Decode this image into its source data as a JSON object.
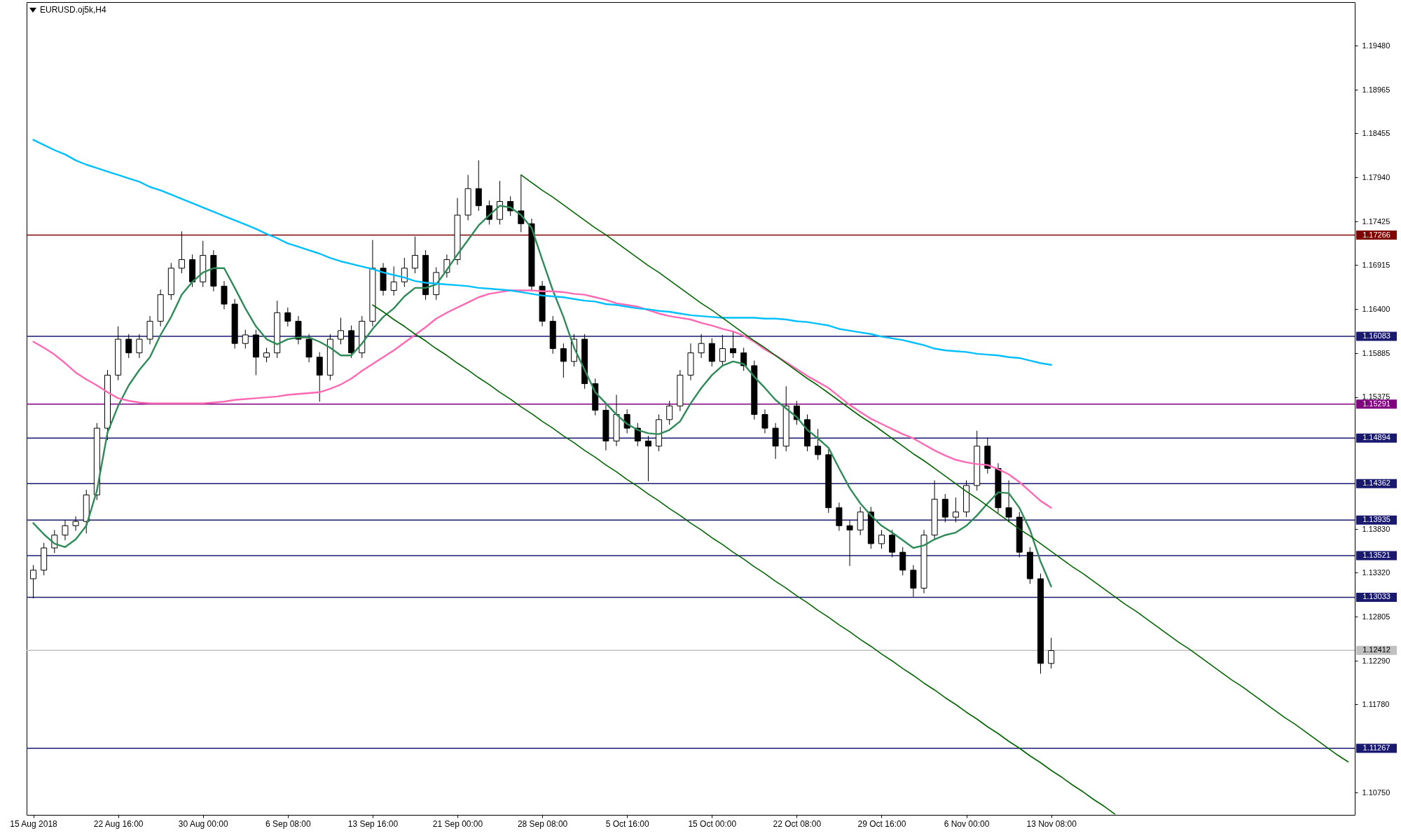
{
  "chart_data": {
    "type": "candlestick",
    "title": "EURUSD.oj5k,H4",
    "categories": [
      "15 Aug 2018",
      null,
      null,
      null,
      null,
      null,
      null,
      null,
      "22 Aug 16:00",
      null,
      null,
      null,
      null,
      null,
      null,
      null,
      "30 Aug 00:00",
      null,
      null,
      null,
      null,
      null,
      null,
      null,
      "6 Sep 08:00",
      null,
      null,
      null,
      null,
      null,
      null,
      null,
      "13 Sep 16:00",
      null,
      null,
      null,
      null,
      null,
      null,
      null,
      "21 Sep 00:00",
      null,
      null,
      null,
      null,
      null,
      null,
      null,
      "28 Sep 08:00",
      null,
      null,
      null,
      null,
      null,
      null,
      null,
      "5 Oct 16:00",
      null,
      null,
      null,
      null,
      null,
      null,
      null,
      "15 Oct 00:00",
      null,
      null,
      null,
      null,
      null,
      null,
      null,
      "22 Oct 08:00",
      null,
      null,
      null,
      null,
      null,
      null,
      null,
      "29 Oct 16:00",
      null,
      null,
      null,
      null,
      null,
      null,
      null,
      "6 Nov 00:00",
      null,
      null,
      null,
      null,
      null,
      null,
      null,
      "13 Nov 08:00",
      null,
      null,
      null,
      null,
      null,
      null,
      null,
      null,
      null,
      null,
      null,
      null,
      null,
      null,
      null,
      null,
      null,
      null,
      null,
      null,
      null,
      null,
      null,
      null,
      null,
      null,
      null,
      null
    ],
    "ohlc": [
      [
        1.1325,
        1.1341,
        1.1302,
        1.1335
      ],
      [
        1.1335,
        1.1367,
        1.1329,
        1.1361
      ],
      [
        1.1361,
        1.1382,
        1.1355,
        1.1376
      ],
      [
        1.1376,
        1.1393,
        1.137,
        1.1387
      ],
      [
        1.1387,
        1.1398,
        1.1381,
        1.1392
      ],
      [
        1.1392,
        1.1429,
        1.1378,
        1.1423
      ],
      [
        1.1423,
        1.1507,
        1.1417,
        1.1501
      ],
      [
        1.1501,
        1.1569,
        1.1487,
        1.1563
      ],
      [
        1.1563,
        1.162,
        1.1557,
        1.1605
      ],
      [
        1.1605,
        1.1611,
        1.1583,
        1.1589
      ],
      [
        1.1589,
        1.1611,
        1.1583,
        1.1605
      ],
      [
        1.1605,
        1.1632,
        1.1599,
        1.1626
      ],
      [
        1.1626,
        1.1663,
        1.162,
        1.1657
      ],
      [
        1.1657,
        1.1694,
        1.1651,
        1.1688
      ],
      [
        1.1688,
        1.1731,
        1.1682,
        1.1698
      ],
      [
        1.1698,
        1.1704,
        1.1666,
        1.1672
      ],
      [
        1.1672,
        1.172,
        1.1666,
        1.1703
      ],
      [
        1.1703,
        1.1709,
        1.1661,
        1.1667
      ],
      [
        1.1667,
        1.1673,
        1.164,
        1.1646
      ],
      [
        1.1646,
        1.1652,
        1.1594,
        1.16
      ],
      [
        1.16,
        1.1616,
        1.1594,
        1.161
      ],
      [
        1.161,
        1.1616,
        1.1563,
        1.1584
      ],
      [
        1.1584,
        1.1595,
        1.1578,
        1.1589
      ],
      [
        1.1589,
        1.165,
        1.1583,
        1.1636
      ],
      [
        1.1636,
        1.1642,
        1.162,
        1.1626
      ],
      [
        1.1626,
        1.1632,
        1.1599,
        1.1605
      ],
      [
        1.1605,
        1.1611,
        1.1578,
        1.1584
      ],
      [
        1.1584,
        1.159,
        1.1532,
        1.1563
      ],
      [
        1.1563,
        1.1611,
        1.1557,
        1.1605
      ],
      [
        1.1605,
        1.163,
        1.1599,
        1.1615
      ],
      [
        1.1615,
        1.1621,
        1.1583,
        1.1589
      ],
      [
        1.1589,
        1.1632,
        1.1583,
        1.1626
      ],
      [
        1.1626,
        1.1721,
        1.162,
        1.1688
      ],
      [
        1.1688,
        1.1694,
        1.1656,
        1.1662
      ],
      [
        1.1662,
        1.169,
        1.1656,
        1.1672
      ],
      [
        1.1672,
        1.17,
        1.1666,
        1.1688
      ],
      [
        1.1688,
        1.1725,
        1.1682,
        1.1703
      ],
      [
        1.1703,
        1.1709,
        1.1651,
        1.1657
      ],
      [
        1.1657,
        1.1689,
        1.1651,
        1.1683
      ],
      [
        1.1683,
        1.1704,
        1.1677,
        1.1698
      ],
      [
        1.1698,
        1.177,
        1.1692,
        1.175
      ],
      [
        1.175,
        1.1797,
        1.1744,
        1.1781
      ],
      [
        1.1781,
        1.1814,
        1.1755,
        1.1761
      ],
      [
        1.1761,
        1.1767,
        1.1739,
        1.1745
      ],
      [
        1.1745,
        1.179,
        1.1739,
        1.1766
      ],
      [
        1.1766,
        1.1772,
        1.1749,
        1.1755
      ],
      [
        1.1755,
        1.1797,
        1.173,
        1.174
      ],
      [
        1.174,
        1.1746,
        1.1661,
        1.1667
      ],
      [
        1.1667,
        1.1673,
        1.162,
        1.1626
      ],
      [
        1.1626,
        1.1632,
        1.1588,
        1.1594
      ],
      [
        1.1594,
        1.16,
        1.156,
        1.1579
      ],
      [
        1.1579,
        1.1611,
        1.1573,
        1.1605
      ],
      [
        1.1605,
        1.1611,
        1.1547,
        1.1553
      ],
      [
        1.1553,
        1.1559,
        1.1516,
        1.1522
      ],
      [
        1.1522,
        1.1528,
        1.1475,
        1.1486
      ],
      [
        1.1486,
        1.154,
        1.148,
        1.1517
      ],
      [
        1.1517,
        1.1523,
        1.1495,
        1.1501
      ],
      [
        1.1501,
        1.1507,
        1.148,
        1.1486
      ],
      [
        1.1486,
        1.1492,
        1.1439,
        1.148
      ],
      [
        1.148,
        1.1517,
        1.1474,
        1.1511
      ],
      [
        1.1511,
        1.1533,
        1.1505,
        1.1527
      ],
      [
        1.1527,
        1.1569,
        1.1521,
        1.1563
      ],
      [
        1.1563,
        1.16,
        1.1557,
        1.1589
      ],
      [
        1.1589,
        1.1611,
        1.1583,
        1.16
      ],
      [
        1.16,
        1.1606,
        1.1573,
        1.1579
      ],
      [
        1.1579,
        1.161,
        1.1573,
        1.1594
      ],
      [
        1.1594,
        1.1615,
        1.1583,
        1.1589
      ],
      [
        1.1589,
        1.1595,
        1.1568,
        1.1574
      ],
      [
        1.1574,
        1.158,
        1.1511,
        1.1517
      ],
      [
        1.1517,
        1.1523,
        1.1495,
        1.1501
      ],
      [
        1.1501,
        1.1507,
        1.1465,
        1.148
      ],
      [
        1.148,
        1.155,
        1.1474,
        1.1527
      ],
      [
        1.1527,
        1.1533,
        1.1505,
        1.1511
      ],
      [
        1.1511,
        1.1517,
        1.1474,
        1.148
      ],
      [
        1.148,
        1.15,
        1.1464,
        1.147
      ],
      [
        1.147,
        1.1476,
        1.1402,
        1.1408
      ],
      [
        1.1408,
        1.1414,
        1.1381,
        1.1387
      ],
      [
        1.1387,
        1.1393,
        1.134,
        1.1382
      ],
      [
        1.1382,
        1.1409,
        1.1376,
        1.1403
      ],
      [
        1.1403,
        1.1409,
        1.136,
        1.1366
      ],
      [
        1.1366,
        1.1382,
        1.136,
        1.1376
      ],
      [
        1.1376,
        1.1382,
        1.135,
        1.1356
      ],
      [
        1.1356,
        1.1362,
        1.1329,
        1.1335
      ],
      [
        1.1335,
        1.1341,
        1.1304,
        1.1314
      ],
      [
        1.1314,
        1.1382,
        1.1308,
        1.1376
      ],
      [
        1.1376,
        1.144,
        1.137,
        1.1418
      ],
      [
        1.1418,
        1.1424,
        1.1391,
        1.1397
      ],
      [
        1.1397,
        1.142,
        1.1391,
        1.1403
      ],
      [
        1.1403,
        1.144,
        1.1397,
        1.1434
      ],
      [
        1.1434,
        1.1498,
        1.1428,
        1.148
      ],
      [
        1.148,
        1.149,
        1.1448,
        1.1454
      ],
      [
        1.1454,
        1.146,
        1.1402,
        1.1408
      ],
      [
        1.1408,
        1.144,
        1.1391,
        1.1397
      ],
      [
        1.1397,
        1.1403,
        1.135,
        1.1356
      ],
      [
        1.1356,
        1.1362,
        1.1319,
        1.1325
      ],
      [
        1.1325,
        1.1331,
        1.1214,
        1.1226
      ],
      [
        1.1226,
        1.1256,
        1.122,
        1.1241
      ],
      null,
      null,
      null,
      null,
      null,
      null,
      null,
      null,
      null,
      null,
      null,
      null,
      null,
      null,
      null,
      null,
      null,
      null,
      null,
      null,
      null,
      null,
      null,
      null,
      null,
      null,
      null,
      null
    ],
    "ylim": [
      1.1049,
      1.1999
    ],
    "yticks": [
      {
        "value": 1.1948,
        "label": "1.19480"
      },
      {
        "value": 1.18965,
        "label": "1.18965"
      },
      {
        "value": 1.18455,
        "label": "1.18455"
      },
      {
        "value": 1.1794,
        "label": "1.17940"
      },
      {
        "value": 1.17425,
        "label": "1.17425"
      },
      {
        "value": 1.16915,
        "label": "1.16915"
      },
      {
        "value": 1.164,
        "label": "1.16400"
      },
      {
        "value": 1.15885,
        "label": "1.15885"
      },
      {
        "value": 1.15375,
        "label": "1.15375"
      },
      {
        "value": 1.1383,
        "label": "1.13830"
      },
      {
        "value": 1.1332,
        "label": "1.13320"
      },
      {
        "value": 1.12805,
        "label": "1.12805"
      },
      {
        "value": 1.1229,
        "label": "1.12290"
      },
      {
        "value": 1.1178,
        "label": "1.11780"
      },
      {
        "value": 1.1075,
        "label": "1.10750"
      }
    ],
    "series": [
      {
        "type": "line",
        "color": "#2e8b57",
        "values": [
          1.139,
          1.1377,
          1.1366,
          1.1362,
          1.1371,
          1.1387,
          1.1428,
          1.1496,
          1.1527,
          1.1551,
          1.1569,
          1.1584,
          1.161,
          1.1631,
          1.1657,
          1.1672,
          1.1683,
          1.1688,
          1.1688,
          1.1665,
          1.1641,
          1.162,
          1.1605,
          1.1599,
          1.1605,
          1.1607,
          1.1607,
          1.1602,
          1.1595,
          1.1586,
          1.1586,
          1.16,
          1.1617,
          1.1631,
          1.1641,
          1.1655,
          1.1665,
          1.1665,
          1.1669,
          1.1686,
          1.1704,
          1.1721,
          1.1738,
          1.175,
          1.1761,
          1.1759,
          1.175,
          1.1735,
          1.1698,
          1.1662,
          1.1631,
          1.1595,
          1.1569,
          1.1543,
          1.153,
          1.1517,
          1.1506,
          1.1499,
          1.1495,
          1.1494,
          1.1499,
          1.1509,
          1.153,
          1.1548,
          1.1563,
          1.1574,
          1.1579,
          1.1576,
          1.1561,
          1.1548,
          1.1534,
          1.1524,
          1.1514,
          1.1499,
          1.1489,
          1.1478,
          1.1454,
          1.1431,
          1.1413,
          1.1399,
          1.1387,
          1.1379,
          1.137,
          1.1361,
          1.1364,
          1.1371,
          1.1376,
          1.1379,
          1.1387,
          1.1399,
          1.1413,
          1.1426,
          1.1425,
          1.1408,
          1.1382,
          1.1345,
          1.1316,
          null,
          null,
          null,
          null,
          null,
          null,
          null,
          null,
          null,
          null,
          null,
          null,
          null,
          null,
          null,
          null,
          null,
          null,
          null,
          null,
          null,
          null,
          null,
          null,
          null,
          null,
          null,
          null
        ]
      },
      {
        "type": "line",
        "color": "#ff69b4",
        "values": [
          1.1602,
          1.1595,
          1.1587,
          1.1577,
          1.1566,
          1.1558,
          1.1551,
          1.1543,
          1.1536,
          1.1533,
          1.1531,
          1.153,
          1.153,
          1.153,
          1.153,
          1.153,
          1.153,
          1.1531,
          1.1532,
          1.1534,
          1.1535,
          1.1536,
          1.1537,
          1.1538,
          1.154,
          1.1541,
          1.1542,
          1.1543,
          1.1547,
          1.1552,
          1.1559,
          1.1568,
          1.1576,
          1.1584,
          1.1592,
          1.1601,
          1.161,
          1.1619,
          1.1629,
          1.1636,
          1.1642,
          1.1648,
          1.1654,
          1.1658,
          1.166,
          1.1662,
          1.1662,
          1.1662,
          1.1661,
          1.1661,
          1.166,
          1.1658,
          1.1657,
          1.1654,
          1.1651,
          1.1647,
          1.1645,
          1.1643,
          1.1639,
          1.1635,
          1.1632,
          1.163,
          1.1628,
          1.1624,
          1.1621,
          1.1617,
          1.1614,
          1.1609,
          1.1602,
          1.1593,
          1.1586,
          1.1578,
          1.157,
          1.1562,
          1.1555,
          1.1548,
          1.1538,
          1.1528,
          1.152,
          1.1512,
          1.1506,
          1.15,
          1.1494,
          1.1489,
          1.1482,
          1.1475,
          1.1469,
          1.1464,
          1.1461,
          1.1459,
          1.1458,
          1.1453,
          1.1447,
          1.1438,
          1.1427,
          1.1416,
          1.1408,
          null,
          null,
          null,
          null,
          null,
          null,
          null,
          null,
          null,
          null,
          null,
          null,
          null,
          null,
          null,
          null,
          null,
          null,
          null,
          null,
          null,
          null,
          null,
          null,
          null,
          null,
          null,
          null
        ]
      },
      {
        "type": "line",
        "color": "#00bfff",
        "values": [
          1.1838,
          1.1832,
          1.1826,
          1.1821,
          1.1814,
          1.1809,
          1.1805,
          1.1801,
          1.1797,
          1.1793,
          1.1789,
          1.1783,
          1.1779,
          1.1774,
          1.1769,
          1.1764,
          1.1759,
          1.1754,
          1.1749,
          1.1744,
          1.1739,
          1.1734,
          1.1728,
          1.1723,
          1.1717,
          1.1713,
          1.1709,
          1.1705,
          1.17,
          1.1696,
          1.1693,
          1.169,
          1.1687,
          1.1683,
          1.168,
          1.1677,
          1.1673,
          1.1671,
          1.167,
          1.1669,
          1.1668,
          1.1667,
          1.1665,
          1.1664,
          1.1663,
          1.1662,
          1.166,
          1.1658,
          1.1656,
          1.1655,
          1.1654,
          1.1652,
          1.165,
          1.1649,
          1.1646,
          1.1645,
          1.1643,
          1.1641,
          1.164,
          1.1638,
          1.1637,
          1.1635,
          1.1633,
          1.1632,
          1.1631,
          1.163,
          1.163,
          1.163,
          1.163,
          1.1629,
          1.1629,
          1.1628,
          1.1626,
          1.1625,
          1.1623,
          1.1621,
          1.1617,
          1.1615,
          1.1613,
          1.1611,
          1.1608,
          1.1606,
          1.1604,
          1.1601,
          1.1598,
          1.1594,
          1.1592,
          1.1591,
          1.159,
          1.1588,
          1.1587,
          1.1586,
          1.1584,
          1.1583,
          1.158,
          1.1577,
          1.1575,
          null,
          null,
          null,
          null,
          null,
          null,
          null,
          null,
          null,
          null,
          null,
          null,
          null,
          null,
          null,
          null,
          null,
          null,
          null,
          null,
          null,
          null,
          null,
          null,
          null,
          null,
          null,
          null
        ]
      },
      {
        "type": "line",
        "color": "#006400",
        "values": [
          null,
          null,
          null,
          null,
          null,
          null,
          null,
          null,
          null,
          null,
          null,
          null,
          null,
          null,
          null,
          null,
          null,
          null,
          null,
          null,
          null,
          null,
          null,
          null,
          null,
          null,
          null,
          null,
          null,
          null,
          null,
          null,
          null,
          null,
          null,
          null,
          null,
          null,
          null,
          null,
          null,
          null,
          null,
          null,
          null,
          null,
          1.1797,
          1.1788,
          1.1779,
          1.1771,
          1.1762,
          1.1753,
          1.1744,
          1.1735,
          1.1727,
          1.1718,
          1.1709,
          1.17,
          1.1691,
          1.1683,
          1.1674,
          1.1665,
          1.1656,
          1.1647,
          1.1639,
          1.163,
          1.1621,
          1.1612,
          1.1603,
          1.1595,
          1.1586,
          1.1577,
          1.1568,
          1.1559,
          1.1551,
          1.1542,
          1.1533,
          1.1524,
          1.1515,
          1.1507,
          1.1498,
          1.1489,
          1.148,
          1.1471,
          1.1463,
          1.1454,
          1.1445,
          1.1436,
          1.1427,
          1.1419,
          1.141,
          1.1401,
          1.1392,
          1.1383,
          1.1375,
          1.1366,
          1.1357,
          1.1348,
          1.1339,
          1.1331,
          1.1322,
          1.1313,
          1.1304,
          1.1295,
          1.1287,
          1.1278,
          1.1269,
          1.126,
          1.1251,
          1.1243,
          1.1234,
          1.1225,
          1.1216,
          1.1207,
          1.1199,
          1.119,
          1.1181,
          1.1172,
          1.1163,
          1.1155,
          1.1146,
          1.1137,
          1.1128,
          1.1119,
          1.1111
        ]
      },
      {
        "type": "line",
        "color": "#006400",
        "values": [
          null,
          null,
          null,
          null,
          null,
          null,
          null,
          null,
          null,
          null,
          null,
          null,
          null,
          null,
          null,
          null,
          null,
          null,
          null,
          null,
          null,
          null,
          null,
          null,
          null,
          null,
          null,
          null,
          null,
          null,
          null,
          null,
          1.1645,
          1.1637,
          1.1628,
          1.162,
          1.1611,
          1.1603,
          1.1594,
          1.1586,
          1.1577,
          1.1569,
          1.156,
          1.1552,
          1.1543,
          1.1535,
          1.1526,
          1.1518,
          1.1509,
          1.1501,
          1.1492,
          1.1484,
          1.1475,
          1.1467,
          1.1458,
          1.145,
          1.1441,
          1.1433,
          1.1424,
          1.1416,
          1.1407,
          1.1399,
          1.139,
          1.1382,
          1.1373,
          1.1365,
          1.1356,
          1.1348,
          1.1339,
          1.1331,
          1.1322,
          1.1314,
          1.1305,
          1.1297,
          1.1288,
          1.128,
          1.1271,
          1.1263,
          1.1254,
          1.1246,
          1.1237,
          1.1229,
          1.122,
          1.1212,
          1.1203,
          1.1195,
          1.1186,
          1.1178,
          1.1169,
          1.1161,
          1.1152,
          1.1144,
          1.1135,
          1.1127,
          1.1118,
          1.111,
          1.1101,
          1.1093,
          1.1084,
          1.1076,
          1.1067,
          1.1059,
          1.105,
          null,
          null,
          null,
          null,
          null,
          null,
          null,
          null,
          null,
          null,
          null,
          null,
          null,
          null,
          null,
          null,
          null,
          null,
          null,
          null,
          null,
          null
        ]
      }
    ],
    "ref_lines": [
      {
        "axis": "y",
        "value": 1.17266,
        "label": "1.17266",
        "color": "#800000"
      },
      {
        "axis": "y",
        "value": 1.16083,
        "label": "1.16083",
        "color": "#191970"
      },
      {
        "axis": "y",
        "value": 1.15291,
        "label": "1.15291",
        "color": "#800080"
      },
      {
        "axis": "y",
        "value": 1.14894,
        "label": "1.14894",
        "color": "#191970"
      },
      {
        "axis": "y",
        "value": 1.14362,
        "label": "1.14362",
        "color": "#191970"
      },
      {
        "axis": "y",
        "value": 1.13935,
        "label": "1.13935",
        "color": "#191970"
      },
      {
        "axis": "y",
        "value": 1.13521,
        "label": "1.13521",
        "color": "#191970"
      },
      {
        "axis": "y",
        "value": 1.13033,
        "label": "1.13033",
        "color": "#191970"
      },
      {
        "axis": "y",
        "value": 1.12412,
        "label": "1.12412",
        "color": "#c0c0c0"
      },
      {
        "axis": "y",
        "value": 1.11267,
        "label": "1.11267",
        "color": "#191970"
      }
    ],
    "grid": false
  }
}
